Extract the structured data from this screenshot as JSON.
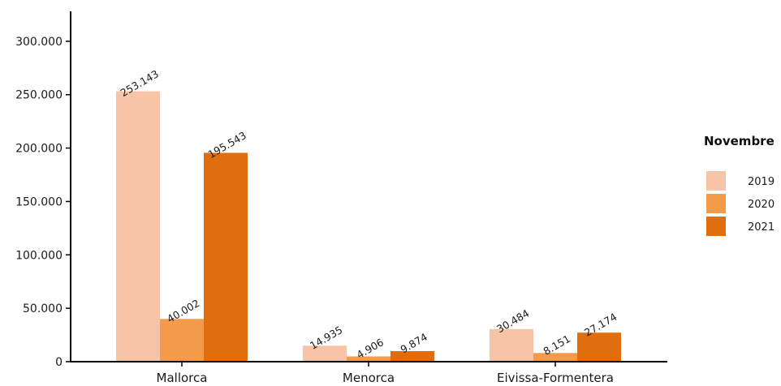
{
  "chart_data": {
    "type": "bar",
    "categories": [
      "Mallorca",
      "Menorca",
      "Eivissa-Formentera"
    ],
    "series": [
      {
        "name": "2019",
        "values": [
          253143,
          14935,
          30484
        ],
        "labels": [
          "253.143",
          "14.935",
          "30.484"
        ],
        "color": "#F8C4A8"
      },
      {
        "name": "2020",
        "values": [
          40002,
          4906,
          8151
        ],
        "labels": [
          "40.002",
          "4.906",
          "8.151"
        ],
        "color": "#F39A4B"
      },
      {
        "name": "2021",
        "values": [
          195543,
          9874,
          27174
        ],
        "labels": [
          "195.543",
          "9.874",
          "27.174"
        ],
        "color": "#E06E0E"
      }
    ],
    "yticks": [
      0,
      50000,
      100000,
      150000,
      200000,
      250000,
      300000
    ],
    "ytick_labels": [
      "0",
      "50.000",
      "100.000",
      "150.000",
      "200.000",
      "250.000",
      "300.000"
    ],
    "ylim": [
      0,
      328000
    ],
    "title": "",
    "xlabel": "",
    "ylabel": "",
    "legend": {
      "title": "Novembre",
      "placement": "right"
    },
    "grid": false
  }
}
